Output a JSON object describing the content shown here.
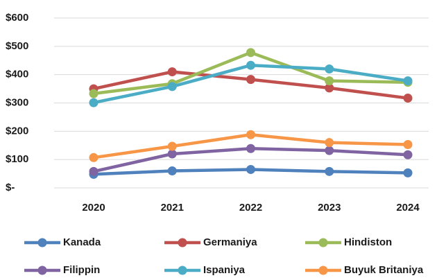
{
  "chart_data": {
    "type": "line",
    "x": [
      "2020",
      "2021",
      "2022",
      "2023",
      "2024"
    ],
    "series": [
      {
        "name": "Kanada",
        "color": "#4f81bd",
        "values": [
          48,
          60,
          65,
          58,
          53
        ]
      },
      {
        "name": "Germaniya",
        "color": "#c0504d",
        "values": [
          350,
          410,
          383,
          353,
          317
        ]
      },
      {
        "name": "Hindiston",
        "color": "#9bbb59",
        "values": [
          333,
          368,
          478,
          378,
          373
        ]
      },
      {
        "name": "Filippin",
        "color": "#8064a2",
        "values": [
          58,
          120,
          139,
          132,
          117
        ]
      },
      {
        "name": "Ispaniya",
        "color": "#4bacc6",
        "values": [
          301,
          358,
          433,
          420,
          378
        ]
      },
      {
        "name": "Buyuk Britaniya",
        "color": "#f79646",
        "values": [
          107,
          147,
          188,
          160,
          153
        ]
      }
    ],
    "ylim": [
      0,
      600
    ],
    "yticks": [
      {
        "value": 0,
        "label": "$-"
      },
      {
        "value": 100,
        "label": "$100"
      },
      {
        "value": 200,
        "label": "$200"
      },
      {
        "value": 300,
        "label": "$300"
      },
      {
        "value": 400,
        "label": "$400"
      },
      {
        "value": 500,
        "label": "$500"
      },
      {
        "value": 600,
        "label": "$600"
      }
    ],
    "grid": true,
    "legend": "bottom"
  }
}
